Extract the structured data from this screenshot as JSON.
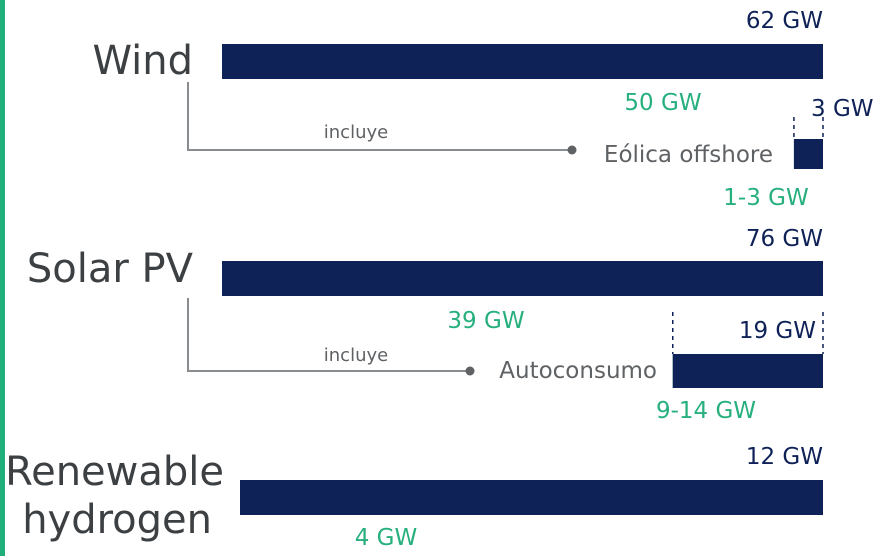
{
  "chart_data": {
    "type": "bar",
    "orientation": "horizontal",
    "unit": "GW",
    "colors": {
      "achieved": "#27b07e",
      "target": "#0f2257",
      "accent": "#1faf7a"
    },
    "categories": [
      "Wind",
      "Solar PV",
      "Renewable hydrogen"
    ],
    "bars": [
      {
        "category": "Wind",
        "total": 62,
        "green": 50,
        "total_label": "62 GW",
        "green_label": "50 GW"
      },
      {
        "category": "Solar PV",
        "total": 76,
        "green": 39,
        "total_label": "76 GW",
        "green_label": "39 GW"
      },
      {
        "category": "Renewable hydrogen",
        "total": 12,
        "green": 4,
        "total_label": "12 GW",
        "green_label": "4 GW"
      }
    ],
    "sub_bars": [
      {
        "parent": "Wind",
        "name": "Eólica offshore",
        "connector_label": "incluye",
        "total": 3,
        "green": 2.2,
        "total_label": "3 GW",
        "green_label": "1-3 GW"
      },
      {
        "parent": "Solar PV",
        "name": "Autoconsumo",
        "connector_label": "incluye",
        "total": 19,
        "green": 11.5,
        "total_label": "19 GW",
        "green_label": "9-14 GW"
      }
    ]
  }
}
